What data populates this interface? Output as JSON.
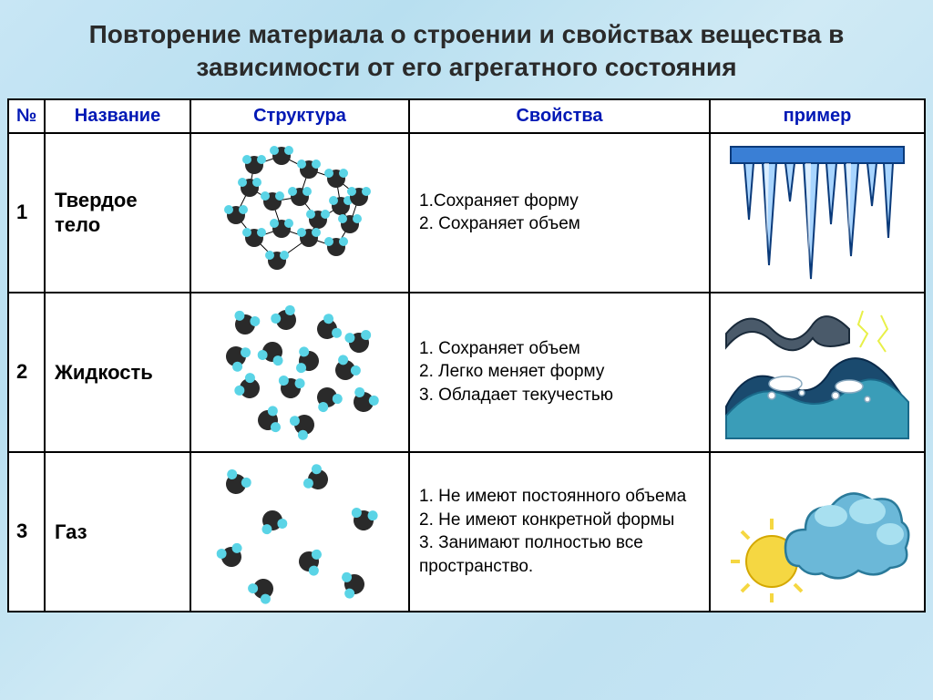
{
  "title": "Повторение материала о строении и свойствах вещества в зависимости от его агрегатного состояния",
  "columns": {
    "num": "№",
    "name": "Название",
    "struct": "Структура",
    "props": "Свойства",
    "example": "пример"
  },
  "rows": [
    {
      "num": "1",
      "name": "Твердое тело",
      "props": "1.Сохраняет форму\n2. Сохраняет объем"
    },
    {
      "num": "2",
      "name": "Жидкость",
      "props": "1. Сохраняет объем\n2. Легко меняет форму\n3. Обладает текучестью"
    },
    {
      "num": "3",
      "name": "Газ",
      "props": "1. Не имеют постоянного объема\n2. Не имеют конкретной формы\n3. Занимают полностью все пространство."
    }
  ],
  "colors": {
    "header_text": "#0018b5",
    "border": "#000000",
    "mol_dark": "#2a2a2a",
    "mol_light": "#5ad4e6",
    "ice": "#3a7fd5",
    "ice_light": "#a8d5ff",
    "wave_dark": "#1a4a6e",
    "wave_mid": "#3a9db8",
    "cloud": "#6bb8d8",
    "sun": "#f5d742"
  }
}
